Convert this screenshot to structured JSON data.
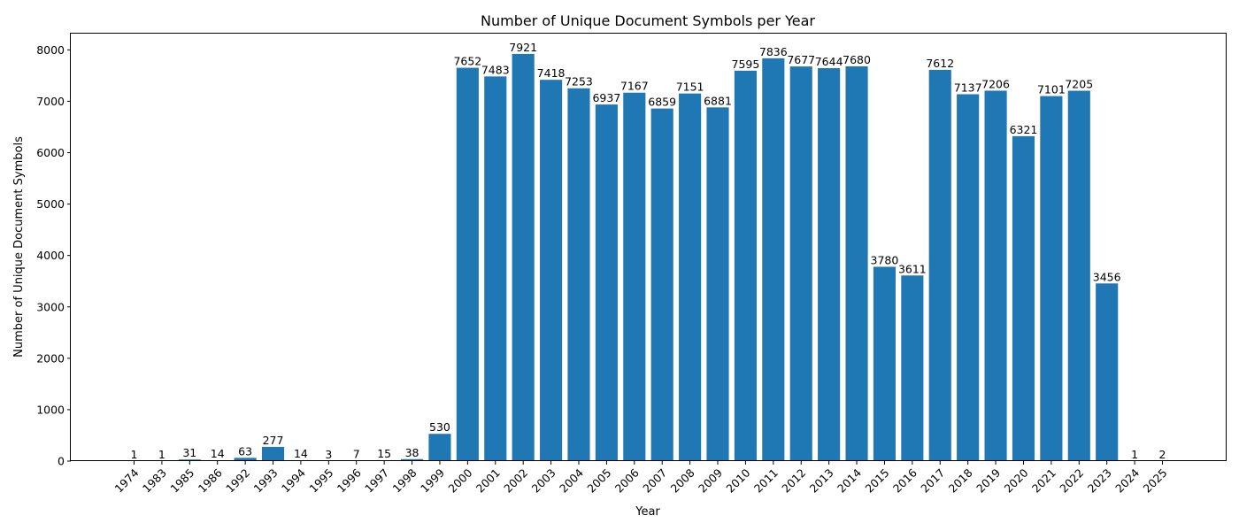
{
  "chart_data": {
    "type": "bar",
    "title": "Number of Unique Document Symbols per Year",
    "xlabel": "Year",
    "ylabel": "Number of Unique Document Symbols",
    "categories": [
      "1974",
      "1983",
      "1985",
      "1986",
      "1992",
      "1993",
      "1994",
      "1995",
      "1996",
      "1997",
      "1998",
      "1999",
      "2000",
      "2001",
      "2002",
      "2003",
      "2004",
      "2005",
      "2006",
      "2007",
      "2008",
      "2009",
      "2010",
      "2011",
      "2012",
      "2013",
      "2014",
      "2015",
      "2016",
      "2017",
      "2018",
      "2019",
      "2020",
      "2021",
      "2022",
      "2023",
      "2024",
      "2025"
    ],
    "values": [
      1,
      1,
      31,
      14,
      63,
      277,
      14,
      3,
      7,
      15,
      38,
      530,
      7652,
      7483,
      7921,
      7418,
      7253,
      6937,
      7167,
      6859,
      7151,
      6881,
      7595,
      7836,
      7677,
      7644,
      7680,
      3780,
      3611,
      7612,
      7137,
      7206,
      6321,
      7101,
      7205,
      3456,
      1,
      2
    ],
    "data_labels": [
      "1",
      "1",
      "31",
      "14",
      "63",
      "277",
      "14",
      "3",
      "7",
      "15",
      "38",
      "530",
      "7652",
      "7483",
      "7921",
      "7418",
      "7253",
      "6937",
      "7167",
      "6859",
      "7151",
      "6881",
      "7595",
      "7836",
      "7677",
      "7644",
      "7680",
      "3780",
      "3611",
      "7612",
      "7137",
      "7206",
      "6321",
      "7101",
      "7205",
      "3456",
      "1",
      "2"
    ],
    "ylim": [
      0,
      8316
    ],
    "yticks": [
      0,
      1000,
      2000,
      3000,
      4000,
      5000,
      6000,
      7000,
      8000
    ],
    "ytick_labels": [
      "0",
      "1000",
      "2000",
      "3000",
      "4000",
      "5000",
      "6000",
      "7000",
      "8000"
    ],
    "grid": false,
    "legend": "none",
    "bar_color": "#1f77b4"
  }
}
